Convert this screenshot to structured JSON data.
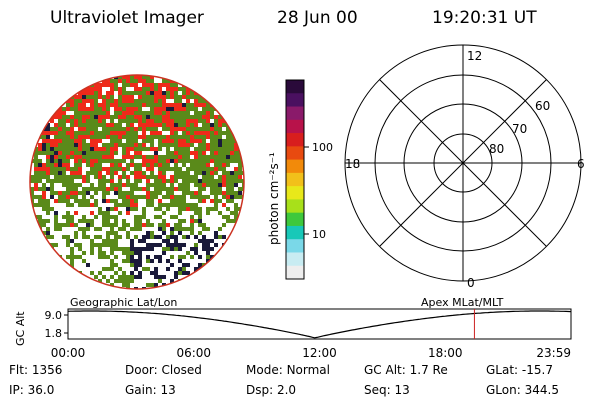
{
  "header": {
    "instrument": "Ultraviolet Imager",
    "date": "28 Jun 00",
    "time": "19:20:31 UT"
  },
  "colorbar": {
    "unit_label": "photon cm⁻²s⁻¹",
    "tick_labels": [
      "100",
      "10"
    ],
    "colors": [
      "#2a0a3a",
      "#4a1060",
      "#8a1a6a",
      "#b8124a",
      "#d81e1e",
      "#e84a10",
      "#f28a0a",
      "#f2c01a",
      "#e8e81a",
      "#a8e01a",
      "#3ec83c",
      "#18c8b8",
      "#7ad8e8",
      "#c8ecf2",
      "#eeeeee"
    ]
  },
  "polar_plot": {
    "lat_labels": [
      "80",
      "70",
      "60"
    ],
    "mlt_labels": {
      "top": "12",
      "right": "6",
      "bottom": "0",
      "left": "18"
    }
  },
  "orbit_panel": {
    "left_title": "Geographic Lat/Lon",
    "right_title": "Apex MLat/MLT",
    "y_axis_label": "GC Alt",
    "y_ticks": [
      "9.0",
      "1.8"
    ],
    "x_ticks": [
      "00:00",
      "06:00",
      "12:00",
      "18:00",
      "23:59"
    ],
    "current_time_fraction": 0.808,
    "altitude_curve_color": "#000000",
    "marker_color": "#cc2222"
  },
  "info": {
    "row1": [
      {
        "key": "Flt:",
        "val": "1356"
      },
      {
        "key": "Door:",
        "val": "Closed"
      },
      {
        "key": "Mode:",
        "val": "Normal"
      },
      {
        "key": "GC Alt:",
        "val": "1.7 Re"
      },
      {
        "key": "GLat:",
        "val": "-15.7"
      }
    ],
    "row2": [
      {
        "key": "IP:",
        "val": "36.0"
      },
      {
        "key": "Gain:",
        "val": "13"
      },
      {
        "key": "Dsp:",
        "val": "2.0"
      },
      {
        "key": "Seq:",
        "val": "13"
      },
      {
        "key": "GLon:",
        "val": "344.5"
      }
    ]
  },
  "image": {
    "palette": [
      "#ffffff",
      "#5a8a1a",
      "#ee2a1a",
      "#1a1a3a"
    ],
    "edge_color": "#cc3322"
  }
}
